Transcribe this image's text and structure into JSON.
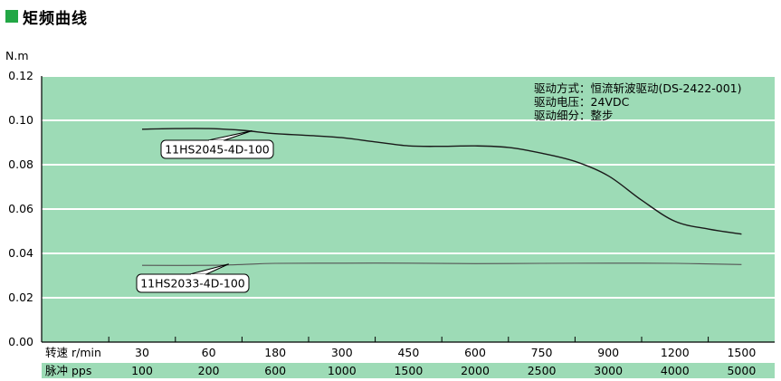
{
  "heading": {
    "title": "矩频曲线",
    "marker_color": "#22a745"
  },
  "chart_data": {
    "type": "line",
    "ylabel": "N.m",
    "ylim": [
      0,
      0.12
    ],
    "yticks": [
      "0.12",
      "0.10",
      "0.08",
      "0.06",
      "0.04",
      "0.02",
      "0.00"
    ],
    "speed_row_label": "转速 r/min",
    "pulse_row_label": "脉冲 pps",
    "speed_ticks": [
      "30",
      "60",
      "180",
      "300",
      "450",
      "600",
      "750",
      "900",
      "1200",
      "1500"
    ],
    "pulse_ticks": [
      "100",
      "200",
      "600",
      "1000",
      "1500",
      "2000",
      "2500",
      "3000",
      "4000",
      "5000"
    ],
    "notes": [
      "驱动方式：恒流斩波驱动(DS-2422-001)",
      "驱动电压：24VDC",
      "驱动细分：整步"
    ],
    "grid": true,
    "plot_background": "#9ddbb6",
    "pulse_row_background": "#9ddbb6",
    "series": [
      {
        "name": "11HS2045-4D-100",
        "color": "#1a1a1a",
        "x": [
          0,
          0.5,
          1,
          1.5,
          2,
          2.5,
          3,
          3.5,
          4,
          4.5,
          5,
          5.5,
          6,
          6.5,
          7,
          7.5,
          8,
          8.5,
          9
        ],
        "values": [
          0.096,
          0.0963,
          0.0963,
          0.0955,
          0.094,
          0.0932,
          0.0922,
          0.0903,
          0.0885,
          0.0883,
          0.0885,
          0.0878,
          0.0852,
          0.0815,
          0.075,
          0.064,
          0.0545,
          0.051,
          0.0487
        ]
      },
      {
        "name": "11HS2033-4D-100",
        "color": "#555555",
        "x": [
          0,
          1,
          1.5,
          2,
          3,
          4,
          5,
          6,
          7,
          8,
          9
        ],
        "values": [
          0.0346,
          0.0346,
          0.035,
          0.0355,
          0.0356,
          0.0356,
          0.0354,
          0.0355,
          0.0356,
          0.0355,
          0.035
        ]
      }
    ]
  }
}
